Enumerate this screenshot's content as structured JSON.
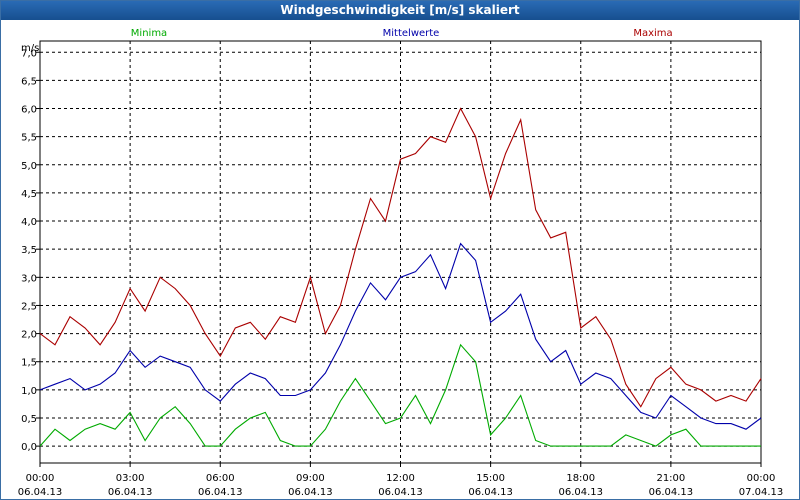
{
  "window": {
    "title": "Windgeschwindigkeit [m/s] skaliert"
  },
  "chart_data": {
    "type": "line",
    "title": "Windgeschwindigkeit [m/s] skaliert",
    "ylabel": "m/s",
    "xlabel": "",
    "ylim": [
      -0.3,
      7.2
    ],
    "y_ticks": [
      "0,0",
      "0,5",
      "1,0",
      "1,5",
      "2,0",
      "2,5",
      "3,0",
      "3,5",
      "4,0",
      "4,5",
      "5,0",
      "5,5",
      "6,0",
      "6,5",
      "7,0"
    ],
    "x_ticks": [
      {
        "time": "00:00",
        "date": "06.04.13"
      },
      {
        "time": "03:00",
        "date": "06.04.13"
      },
      {
        "time": "06:00",
        "date": "06.04.13"
      },
      {
        "time": "09:00",
        "date": "06.04.13"
      },
      {
        "time": "12:00",
        "date": "06.04.13"
      },
      {
        "time": "15:00",
        "date": "06.04.13"
      },
      {
        "time": "18:00",
        "date": "06.04.13"
      },
      {
        "time": "21:00",
        "date": "06.04.13"
      },
      {
        "time": "00:00",
        "date": "07.04.13"
      }
    ],
    "x_hours": [
      0,
      0.5,
      1,
      1.5,
      2,
      2.5,
      3,
      3.5,
      4,
      4.5,
      5,
      5.5,
      6,
      6.5,
      7,
      7.5,
      8,
      8.5,
      9,
      9.5,
      10,
      10.5,
      11,
      11.5,
      12,
      12.5,
      13,
      13.5,
      14,
      14.5,
      15,
      15.5,
      16,
      16.5,
      17,
      17.5,
      18,
      18.5,
      19,
      19.5,
      20,
      20.5,
      21,
      21.5,
      22,
      22.5,
      23,
      23.5,
      24
    ],
    "grid": true,
    "legend_placement": "top",
    "series": [
      {
        "name": "Minima",
        "color": "#00aa00",
        "values": [
          0.0,
          0.3,
          0.1,
          0.3,
          0.4,
          0.3,
          0.6,
          0.1,
          0.5,
          0.7,
          0.4,
          0.0,
          0.0,
          0.3,
          0.5,
          0.6,
          0.1,
          0.0,
          0.0,
          0.3,
          0.8,
          1.2,
          0.8,
          0.4,
          0.5,
          0.9,
          0.4,
          1.0,
          1.8,
          1.5,
          0.2,
          0.5,
          0.9,
          0.1,
          0.0,
          0.0,
          0.0,
          0.0,
          0.0,
          0.2,
          0.1,
          0.0,
          0.2,
          0.3,
          0.0,
          0.0,
          0.0,
          0.0,
          0.0
        ]
      },
      {
        "name": "Mittelwerte",
        "color": "#0000aa",
        "values": [
          1.0,
          1.1,
          1.2,
          1.0,
          1.1,
          1.3,
          1.7,
          1.4,
          1.6,
          1.5,
          1.4,
          1.0,
          0.8,
          1.1,
          1.3,
          1.2,
          0.9,
          0.9,
          1.0,
          1.3,
          1.8,
          2.4,
          2.9,
          2.6,
          3.0,
          3.1,
          3.4,
          2.8,
          3.6,
          3.3,
          2.2,
          2.4,
          2.7,
          1.9,
          1.5,
          1.7,
          1.1,
          1.3,
          1.2,
          0.9,
          0.6,
          0.5,
          0.9,
          0.7,
          0.5,
          0.4,
          0.4,
          0.3,
          0.5
        ]
      },
      {
        "name": "Maxima",
        "color": "#aa0000",
        "values": [
          2.0,
          1.8,
          2.3,
          2.1,
          1.8,
          2.2,
          2.8,
          2.4,
          3.0,
          2.8,
          2.5,
          2.0,
          1.6,
          2.1,
          2.2,
          1.9,
          2.3,
          2.2,
          3.0,
          2.0,
          2.5,
          3.5,
          4.4,
          4.0,
          5.1,
          5.2,
          5.5,
          5.4,
          6.0,
          5.5,
          4.4,
          5.2,
          5.8,
          4.2,
          3.7,
          3.8,
          2.1,
          2.3,
          1.9,
          1.1,
          0.7,
          1.2,
          1.4,
          1.1,
          1.0,
          0.8,
          0.9,
          0.8,
          1.2
        ]
      }
    ]
  }
}
